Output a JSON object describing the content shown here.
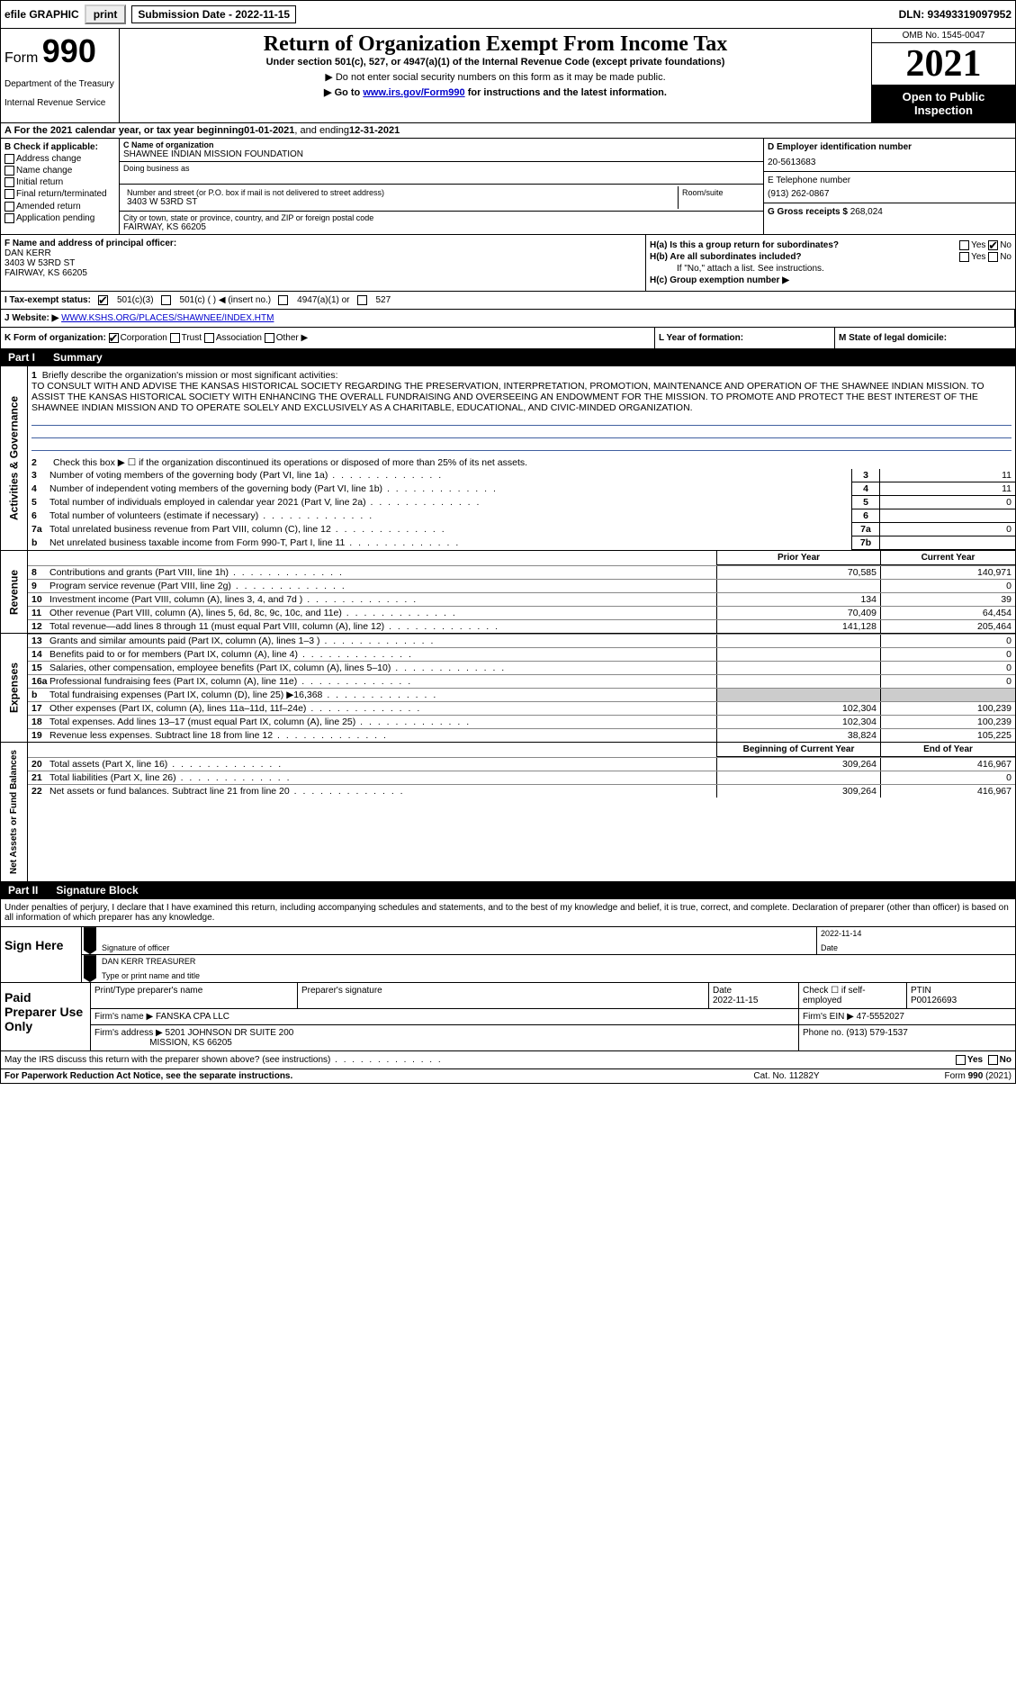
{
  "toolbar": {
    "efile": "efile GRAPHIC",
    "print": "print",
    "submission": "Submission Date - 2022-11-15",
    "dln": "DLN: 93493319097952"
  },
  "header": {
    "form_label": "Form",
    "form_no": "990",
    "title": "Return of Organization Exempt From Income Tax",
    "subtitle1": "Under section 501(c), 527, or 4947(a)(1) of the Internal Revenue Code (except private foundations)",
    "subtitle2": "▶ Do not enter social security numbers on this form as it may be made public.",
    "subtitle3_pre": "▶ Go to ",
    "subtitle3_link": "www.irs.gov/Form990",
    "subtitle3_post": " for instructions and the latest information.",
    "dept": "Department of the Treasury",
    "irs": "Internal Revenue Service",
    "omb": "OMB No. 1545-0047",
    "year": "2021",
    "open": "Open to Public Inspection"
  },
  "row_a": {
    "text_pre": "A For the 2021 calendar year, or tax year beginning ",
    "begin": "01-01-2021",
    "mid": " , and ending ",
    "end": "12-31-2021"
  },
  "section_b": {
    "label": "B Check if applicable:",
    "items": [
      "Address change",
      "Name change",
      "Initial return",
      "Final return/terminated",
      "Amended return",
      "Application pending"
    ]
  },
  "section_c": {
    "label": "C Name of organization",
    "org": "SHAWNEE INDIAN MISSION FOUNDATION",
    "dba_label": "Doing business as",
    "addr_label": "Number and street (or P.O. box if mail is not delivered to street address)",
    "room_label": "Room/suite",
    "addr": "3403 W 53RD ST",
    "city_label": "City or town, state or province, country, and ZIP or foreign postal code",
    "city": "FAIRWAY, KS  66205"
  },
  "section_d": {
    "label": "D Employer identification number",
    "ein": "20-5613683"
  },
  "section_e": {
    "label": "E Telephone number",
    "phone": "(913) 262-0867"
  },
  "section_g": {
    "label": "G Gross receipts $",
    "amount": "268,024"
  },
  "section_f": {
    "label": "F Name and address of principal officer:",
    "name": "DAN KERR",
    "addr1": "3403 W 53RD ST",
    "addr2": "FAIRWAY, KS  66205"
  },
  "section_h": {
    "ha": "H(a) Is this a group return for subordinates?",
    "hb": "H(b) Are all subordinates included?",
    "hb_note": "If \"No,\" attach a list. See instructions.",
    "hc": "H(c) Group exemption number ▶"
  },
  "row_i": {
    "label": "I   Tax-exempt status:",
    "opts": [
      "501(c)(3)",
      "501(c) (  ) ◀ (insert no.)",
      "4947(a)(1) or",
      "527"
    ]
  },
  "row_j": {
    "label": "J   Website: ▶",
    "url": "WWW.KSHS.ORG/PLACES/SHAWNEE/INDEX.HTM"
  },
  "row_k": {
    "label": "K Form of organization:",
    "opts": [
      "Corporation",
      "Trust",
      "Association",
      "Other ▶"
    ]
  },
  "row_l": "L Year of formation:",
  "row_m": "M State of legal domicile:",
  "part1": {
    "num": "Part I",
    "title": "Summary"
  },
  "mission": {
    "num": "1",
    "label": "Briefly describe the organization's mission or most significant activities:",
    "text": "TO CONSULT WITH AND ADVISE THE KANSAS HISTORICAL SOCIETY REGARDING THE PRESERVATION, INTERPRETATION, PROMOTION, MAINTENANCE AND OPERATION OF THE SHAWNEE INDIAN MISSION. TO ASSIST THE KANSAS HISTORICAL SOCIETY WITH ENHANCING THE OVERALL FUNDRAISING AND OVERSEEING AN ENDOWMENT FOR THE MISSION. TO PROMOTE AND PROTECT THE BEST INTEREST OF THE SHAWNEE INDIAN MISSION AND TO OPERATE SOLELY AND EXCLUSIVELY AS A CHARITABLE, EDUCATIONAL, AND CIVIC-MINDED ORGANIZATION."
  },
  "gov_rows": [
    {
      "n": "2",
      "t": "Check this box ▶ ☐ if the organization discontinued its operations or disposed of more than 25% of its net assets."
    },
    {
      "n": "3",
      "t": "Number of voting members of the governing body (Part VI, line 1a)",
      "box": "3",
      "v": "11"
    },
    {
      "n": "4",
      "t": "Number of independent voting members of the governing body (Part VI, line 1b)",
      "box": "4",
      "v": "11"
    },
    {
      "n": "5",
      "t": "Total number of individuals employed in calendar year 2021 (Part V, line 2a)",
      "box": "5",
      "v": "0"
    },
    {
      "n": "6",
      "t": "Total number of volunteers (estimate if necessary)",
      "box": "6",
      "v": ""
    },
    {
      "n": "7a",
      "t": "Total unrelated business revenue from Part VIII, column (C), line 12",
      "box": "7a",
      "v": "0"
    },
    {
      "n": "b",
      "t": "Net unrelated business taxable income from Form 990-T, Part I, line 11",
      "box": "7b",
      "v": ""
    }
  ],
  "col_hdr": {
    "prior": "Prior Year",
    "current": "Current Year"
  },
  "revenue": [
    {
      "n": "8",
      "t": "Contributions and grants (Part VIII, line 1h)",
      "p": "70,585",
      "c": "140,971"
    },
    {
      "n": "9",
      "t": "Program service revenue (Part VIII, line 2g)",
      "p": "",
      "c": "0"
    },
    {
      "n": "10",
      "t": "Investment income (Part VIII, column (A), lines 3, 4, and 7d )",
      "p": "134",
      "c": "39"
    },
    {
      "n": "11",
      "t": "Other revenue (Part VIII, column (A), lines 5, 6d, 8c, 9c, 10c, and 11e)",
      "p": "70,409",
      "c": "64,454"
    },
    {
      "n": "12",
      "t": "Total revenue—add lines 8 through 11 (must equal Part VIII, column (A), line 12)",
      "p": "141,128",
      "c": "205,464"
    }
  ],
  "expenses": [
    {
      "n": "13",
      "t": "Grants and similar amounts paid (Part IX, column (A), lines 1–3 )",
      "p": "",
      "c": "0"
    },
    {
      "n": "14",
      "t": "Benefits paid to or for members (Part IX, column (A), line 4)",
      "p": "",
      "c": "0"
    },
    {
      "n": "15",
      "t": "Salaries, other compensation, employee benefits (Part IX, column (A), lines 5–10)",
      "p": "",
      "c": "0"
    },
    {
      "n": "16a",
      "t": "Professional fundraising fees (Part IX, column (A), line 11e)",
      "p": "",
      "c": "0"
    },
    {
      "n": "b",
      "t": "Total fundraising expenses (Part IX, column (D), line 25) ▶16,368",
      "p": "shade",
      "c": "shade"
    },
    {
      "n": "17",
      "t": "Other expenses (Part IX, column (A), lines 11a–11d, 11f–24e)",
      "p": "102,304",
      "c": "100,239"
    },
    {
      "n": "18",
      "t": "Total expenses. Add lines 13–17 (must equal Part IX, column (A), line 25)",
      "p": "102,304",
      "c": "100,239"
    },
    {
      "n": "19",
      "t": "Revenue less expenses. Subtract line 18 from line 12",
      "p": "38,824",
      "c": "105,225"
    }
  ],
  "col_hdr2": {
    "begin": "Beginning of Current Year",
    "end": "End of Year"
  },
  "netassets": [
    {
      "n": "20",
      "t": "Total assets (Part X, line 16)",
      "p": "309,264",
      "c": "416,967"
    },
    {
      "n": "21",
      "t": "Total liabilities (Part X, line 26)",
      "p": "",
      "c": "0"
    },
    {
      "n": "22",
      "t": "Net assets or fund balances. Subtract line 21 from line 20",
      "p": "309,264",
      "c": "416,967"
    }
  ],
  "vtabs": {
    "gov": "Activities & Governance",
    "rev": "Revenue",
    "exp": "Expenses",
    "net": "Net Assets or Fund Balances"
  },
  "part2": {
    "num": "Part II",
    "title": "Signature Block"
  },
  "sig": {
    "intro": "Under penalties of perjury, I declare that I have examined this return, including accompanying schedules and statements, and to the best of my knowledge and belief, it is true, correct, and complete. Declaration of preparer (other than officer) is based on all information of which preparer has any knowledge.",
    "here": "Sign Here",
    "sig_label": "Signature of officer",
    "date_label": "Date",
    "date": "2022-11-14",
    "name": "DAN KERR TREASURER",
    "name_label": "Type or print name and title"
  },
  "prep": {
    "label": "Paid Preparer Use Only",
    "h1": "Print/Type preparer's name",
    "h2": "Preparer's signature",
    "h3": "Date",
    "h4": "Check ☐ if self-employed",
    "h5": "PTIN",
    "date": "2022-11-15",
    "ptin": "P00126693",
    "firm_label": "Firm's name   ▶",
    "firm": "FANSKA CPA LLC",
    "ein_label": "Firm's EIN ▶",
    "ein": "47-5552027",
    "addr_label": "Firm's address ▶",
    "addr1": "5201 JOHNSON DR SUITE 200",
    "addr2": "MISSION, KS  66205",
    "phone_label": "Phone no.",
    "phone": "(913) 579-1537"
  },
  "footer": {
    "q": "May the IRS discuss this return with the preparer shown above? (see instructions)",
    "yes": "Yes",
    "no": "No",
    "pra": "For Paperwork Reduction Act Notice, see the separate instructions.",
    "cat": "Cat. No. 11282Y",
    "form": "Form 990 (2021)"
  }
}
